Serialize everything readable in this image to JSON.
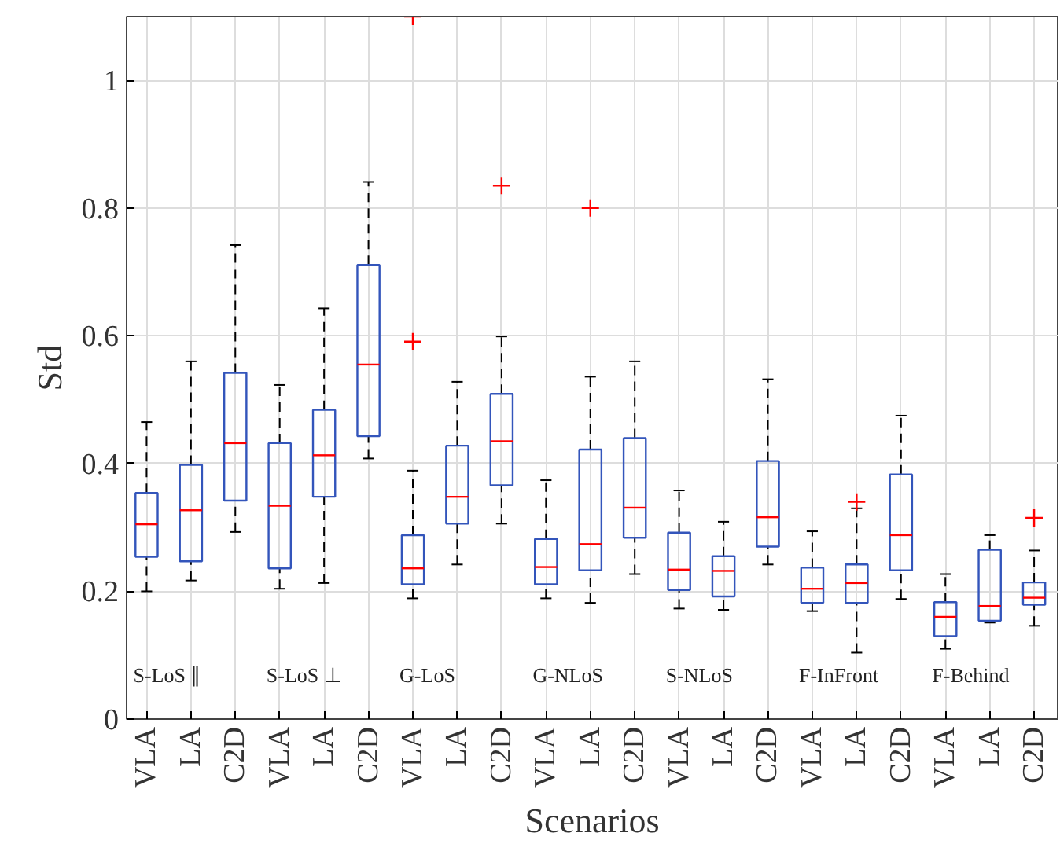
{
  "chart_data": {
    "type": "box",
    "xlabel": "Scenarios",
    "ylabel": "Std",
    "categories": [
      "VLA",
      "LA",
      "C2D",
      "VLA",
      "LA",
      "C2D",
      "VLA",
      "LA",
      "C2D",
      "VLA",
      "LA",
      "C2D",
      "VLA",
      "LA",
      "C2D",
      "VLA",
      "LA",
      "C2D",
      "VLA",
      "LA",
      "C2D"
    ],
    "ylim": [
      0,
      1.1
    ],
    "yticks": [
      0,
      0.2,
      0.4,
      0.6,
      0.8,
      1
    ],
    "grid": true,
    "color": "#3355bb",
    "marker": "cross",
    "annotations": [
      "S-LoS ∥",
      "S-LoS ⊥",
      "G-LoS",
      "G-NLoS",
      "S-NLoS",
      "F-InFront",
      "F-Behind"
    ],
    "boxes": [
      {
        "low": 0.2,
        "q1": 0.254,
        "median": 0.305,
        "q3": 0.354,
        "high": 0.465
      },
      {
        "low": 0.217,
        "q1": 0.247,
        "median": 0.327,
        "q3": 0.398,
        "high": 0.56
      },
      {
        "low": 0.293,
        "q1": 0.342,
        "median": 0.432,
        "q3": 0.542,
        "high": 0.742
      },
      {
        "low": 0.204,
        "q1": 0.236,
        "median": 0.334,
        "q3": 0.432,
        "high": 0.523
      },
      {
        "low": 0.213,
        "q1": 0.348,
        "median": 0.413,
        "q3": 0.484,
        "high": 0.643
      },
      {
        "low": 0.408,
        "q1": 0.443,
        "median": 0.555,
        "q3": 0.711,
        "high": 0.841
      },
      {
        "low": 0.189,
        "q1": 0.211,
        "median": 0.236,
        "q3": 0.288,
        "high": 0.389,
        "outliers": [
          0.591,
          1.1
        ]
      },
      {
        "low": 0.242,
        "q1": 0.306,
        "median": 0.348,
        "q3": 0.428,
        "high": 0.528
      },
      {
        "low": 0.306,
        "q1": 0.366,
        "median": 0.435,
        "q3": 0.509,
        "high": 0.599,
        "outliers": [
          0.835
        ]
      },
      {
        "low": 0.189,
        "q1": 0.211,
        "median": 0.238,
        "q3": 0.282,
        "high": 0.374
      },
      {
        "low": 0.182,
        "q1": 0.233,
        "median": 0.274,
        "q3": 0.422,
        "high": 0.536,
        "outliers": [
          0.8
        ]
      },
      {
        "low": 0.227,
        "q1": 0.284,
        "median": 0.331,
        "q3": 0.44,
        "high": 0.56
      },
      {
        "low": 0.173,
        "q1": 0.202,
        "median": 0.234,
        "q3": 0.292,
        "high": 0.358
      },
      {
        "low": 0.171,
        "q1": 0.192,
        "median": 0.232,
        "q3": 0.255,
        "high": 0.309
      },
      {
        "low": 0.242,
        "q1": 0.27,
        "median": 0.316,
        "q3": 0.404,
        "high": 0.532
      },
      {
        "low": 0.169,
        "q1": 0.182,
        "median": 0.204,
        "q3": 0.237,
        "high": 0.294
      },
      {
        "low": 0.104,
        "q1": 0.182,
        "median": 0.213,
        "q3": 0.242,
        "high": 0.33,
        "outliers": [
          0.34
        ]
      },
      {
        "low": 0.188,
        "q1": 0.233,
        "median": 0.288,
        "q3": 0.383,
        "high": 0.475
      },
      {
        "low": 0.11,
        "q1": 0.13,
        "median": 0.16,
        "q3": 0.183,
        "high": 0.227
      },
      {
        "low": 0.151,
        "q1": 0.154,
        "median": 0.177,
        "q3": 0.265,
        "high": 0.288
      },
      {
        "low": 0.146,
        "q1": 0.179,
        "median": 0.19,
        "q3": 0.214,
        "high": 0.264,
        "outliers": [
          0.315
        ]
      }
    ]
  }
}
